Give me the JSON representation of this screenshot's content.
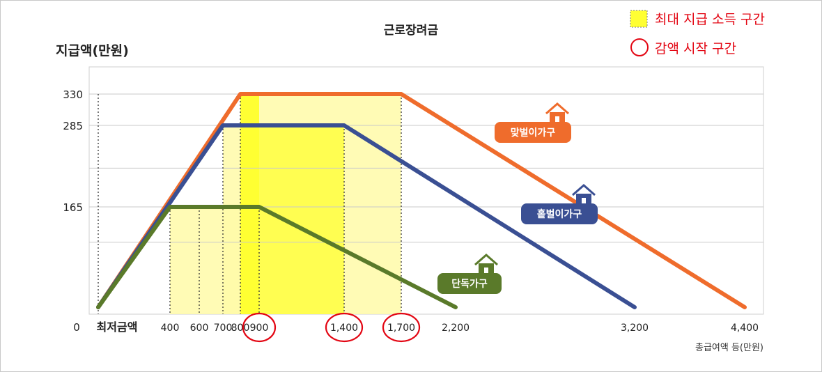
{
  "chart_data": {
    "type": "line",
    "title": "근로장려금",
    "ylabel": "지급액(만원)",
    "xlabel": "총급여액 등(만원)",
    "y_ticks": [
      "330",
      "285",
      "165",
      "0"
    ],
    "x_ticks": [
      "최저금액",
      "400",
      "600",
      "700",
      "800",
      "900",
      "1,400",
      "1,700",
      "2,200",
      "3,200",
      "4,400"
    ],
    "circled_ticks": [
      "900",
      "1,400",
      "1,700"
    ],
    "ylim": [
      0,
      330
    ],
    "grid": true,
    "series": [
      {
        "name": "맞벌이가구",
        "color": "#ef6c2c",
        "points": [
          [
            0,
            0
          ],
          [
            800,
            330
          ],
          [
            1700,
            330
          ],
          [
            4400,
            0
          ]
        ]
      },
      {
        "name": "홑벌이가구",
        "color": "#3a4f93",
        "points": [
          [
            0,
            0
          ],
          [
            700,
            285
          ],
          [
            1400,
            285
          ],
          [
            3200,
            0
          ]
        ]
      },
      {
        "name": "단독가구",
        "color": "#5a7a2a",
        "points": [
          [
            0,
            0
          ],
          [
            400,
            165
          ],
          [
            900,
            165
          ],
          [
            2200,
            0
          ]
        ]
      }
    ],
    "legend": [
      {
        "label": "최대 지급 소득 구간",
        "marker": "yellow-square"
      },
      {
        "label": "감액 시작 구간",
        "marker": "red-circle"
      }
    ]
  },
  "colors": {
    "highlight_light": "#fffaa8",
    "highlight_strong": "#ffff33",
    "legend_red": "#e30613"
  }
}
